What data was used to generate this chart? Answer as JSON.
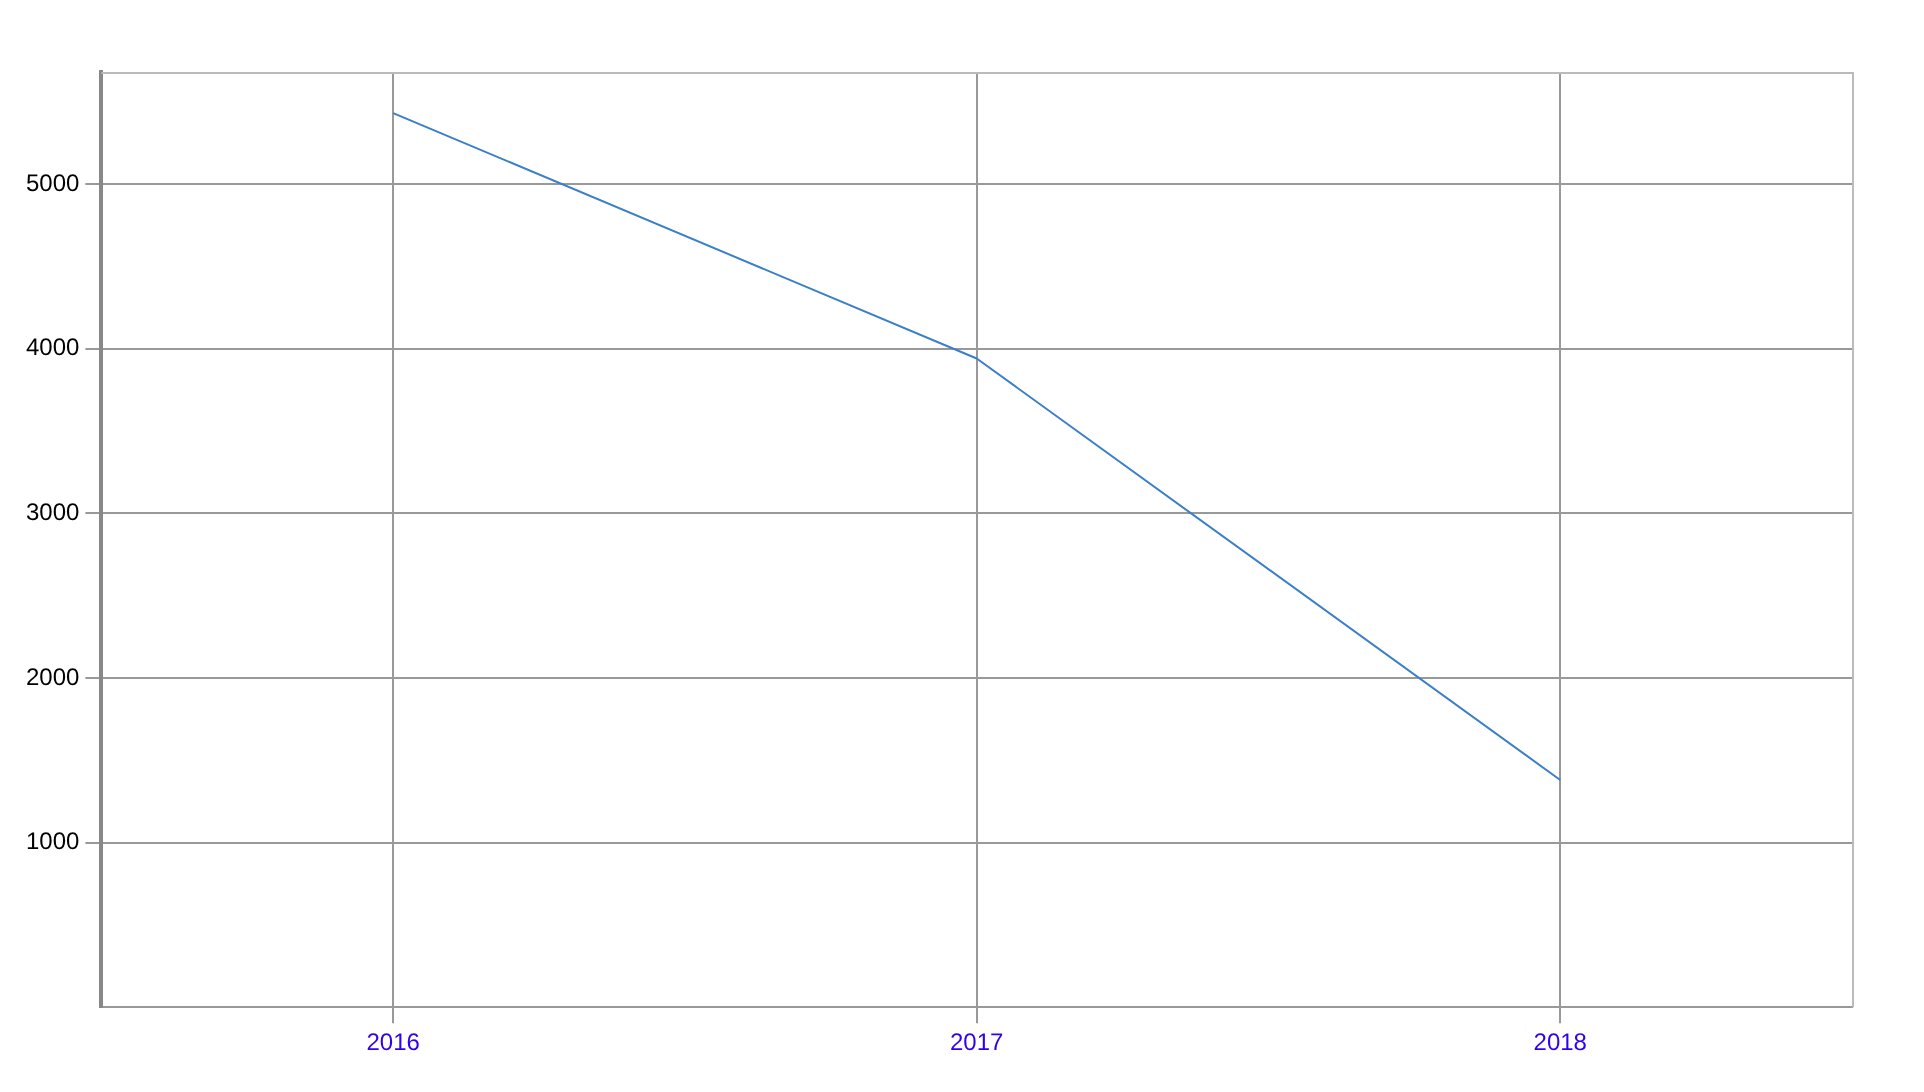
{
  "chart_data": {
    "type": "line",
    "categories": [
      "2016",
      "2017",
      "2018"
    ],
    "series": [
      {
        "color": "#3a7fc8",
        "values": [
          5430,
          3940,
          1380
        ]
      }
    ],
    "ylim": [
      0,
      5680
    ],
    "yticks": [
      1000,
      2000,
      3000,
      4000,
      5000
    ],
    "grid": true,
    "legend": false,
    "marker": "none",
    "line_style": "solid"
  }
}
